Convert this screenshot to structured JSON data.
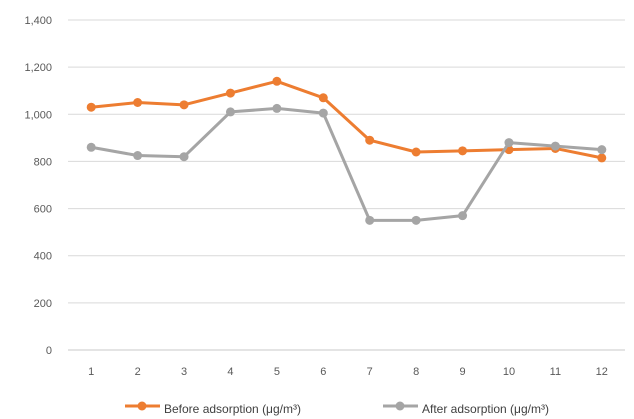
{
  "chart_data": {
    "type": "line",
    "title": "",
    "xlabel": "",
    "ylabel": "",
    "categories": [
      "1",
      "2",
      "3",
      "4",
      "5",
      "6",
      "7",
      "8",
      "9",
      "10",
      "11",
      "12"
    ],
    "ylim": [
      0,
      1400
    ],
    "yticks": [
      0,
      200,
      400,
      600,
      800,
      1000,
      1200,
      1400
    ],
    "ytick_labels": [
      "0",
      "200",
      "400",
      "600",
      "800",
      "1,000",
      "1,200",
      "1,400"
    ],
    "grid": true,
    "legend_position": "bottom",
    "series": [
      {
        "name": "Before adsorption (μg/m³)",
        "color": "#ED7D31",
        "values": [
          1030,
          1050,
          1040,
          1090,
          1140,
          1070,
          890,
          840,
          845,
          850,
          855,
          815
        ]
      },
      {
        "name": "After adsorption (μg/m³)",
        "color": "#A5A5A5",
        "values": [
          860,
          825,
          820,
          1010,
          1025,
          1005,
          550,
          550,
          570,
          880,
          865,
          850
        ]
      }
    ]
  }
}
